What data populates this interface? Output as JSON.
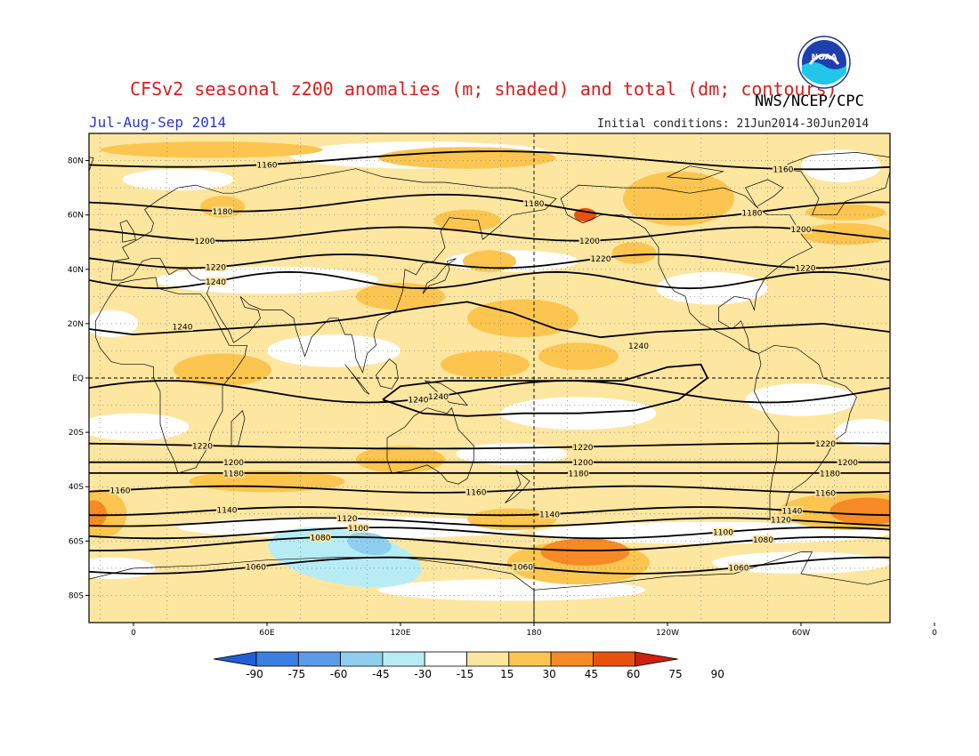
{
  "header": {
    "title": "CFSv2 seasonal z200 anomalies (m; shaded) and total (dm; contours)",
    "agency": "NWS/NCEP/CPC",
    "season": "Jul-Aug-Sep 2014",
    "initial_conditions": "Initial conditions: 21Jun2014-30Jun2014"
  },
  "logo": {
    "text": "NOAA",
    "icon": "noaa-logo"
  },
  "colors": {
    "frame": "#000000",
    "shade_15_30": "#fde6a0",
    "shade_30_45": "#fbc54f",
    "shade_45_60": "#f58a26",
    "shade_60_75": "#e8520f",
    "shade_neg15_neg30": "#b8ecf5",
    "shade_neg30_neg45": "#8ecfef",
    "neutral": "#ffffff"
  },
  "chart_data": {
    "type": "heatmap",
    "projection": "cylindrical equidistant",
    "grid": true,
    "x_ticks": [
      "0",
      "60E",
      "120E",
      "180",
      "120W",
      "60W",
      "0"
    ],
    "y_ticks": [
      "80N",
      "60N",
      "40N",
      "20N",
      "EQ",
      "20S",
      "40S",
      "60S",
      "80S"
    ],
    "colorbar": {
      "levels": [
        "-90",
        "-75",
        "-60",
        "-45",
        "-30",
        "-15",
        "15",
        "30",
        "45",
        "60",
        "75",
        "90"
      ],
      "colors": [
        "#1f5fd6",
        "#3b7fe0",
        "#5a9ae8",
        "#8ecfef",
        "#b8ecf5",
        "#ffffff",
        "#fde6a0",
        "#fbc54f",
        "#f58a26",
        "#e8520f",
        "#cc2010"
      ]
    },
    "contours": [
      {
        "value": "1160",
        "lat": 80,
        "labels": [
          {
            "lon": 60,
            "text": "1160"
          },
          {
            "lon": 292,
            "text": "1160"
          }
        ]
      },
      {
        "value": "1180",
        "lat": 63,
        "labels": [
          {
            "lon": 40,
            "text": "1180"
          },
          {
            "lon": 180,
            "text": "1180"
          },
          {
            "lon": 278,
            "text": "1180"
          }
        ]
      },
      {
        "value": "1200",
        "lat": 53,
        "labels": [
          {
            "lon": 32,
            "text": "1200"
          },
          {
            "lon": 205,
            "text": "1200"
          },
          {
            "lon": 300,
            "text": "1200"
          }
        ]
      },
      {
        "value": "1220",
        "lat": 43,
        "labels": [
          {
            "lon": 37,
            "text": "1220"
          },
          {
            "lon": 210,
            "text": "1220"
          },
          {
            "lon": 302,
            "text": "1220"
          }
        ]
      },
      {
        "value": "1240",
        "lat": 36,
        "labels": [
          {
            "lon": 37,
            "text": "1240"
          }
        ]
      },
      {
        "value": "1240",
        "lat": 17,
        "labels": [
          {
            "lon": 22,
            "text": "1240"
          },
          {
            "lon": 227,
            "text": "1240"
          },
          {
            "lon": 344,
            "text": "1240"
          }
        ]
      },
      {
        "value": "1240",
        "lat": -3,
        "labels": [
          {
            "lon": 137,
            "text": "1240"
          },
          {
            "lon": 128,
            "text": "1240"
          }
        ]
      },
      {
        "value": "1220",
        "lat": -25,
        "labels": [
          {
            "lon": 31,
            "text": "1220"
          },
          {
            "lon": 202,
            "text": "1220"
          },
          {
            "lon": 311,
            "text": "1220"
          }
        ]
      },
      {
        "value": "1200",
        "lat": -31,
        "labels": [
          {
            "lon": 45,
            "text": "1200"
          },
          {
            "lon": 202,
            "text": "1200"
          },
          {
            "lon": 321,
            "text": "1200"
          }
        ]
      },
      {
        "value": "1180",
        "lat": -35,
        "labels": [
          {
            "lon": 45,
            "text": "1180"
          },
          {
            "lon": 200,
            "text": "1180"
          },
          {
            "lon": 313,
            "text": "1180"
          }
        ]
      },
      {
        "value": "1160",
        "lat": -41,
        "labels": [
          {
            "lon": -6,
            "text": "1160"
          },
          {
            "lon": 154,
            "text": "1160"
          },
          {
            "lon": 311,
            "text": "1160"
          }
        ]
      },
      {
        "value": "1140",
        "lat": -49,
        "labels": [
          {
            "lon": 42,
            "text": "1140"
          },
          {
            "lon": 187,
            "text": "1140"
          },
          {
            "lon": 296,
            "text": "1140"
          }
        ]
      },
      {
        "value": "1120",
        "lat": -53,
        "labels": [
          {
            "lon": 96,
            "text": "1120"
          },
          {
            "lon": 291,
            "text": "1120"
          }
        ]
      },
      {
        "value": "1100",
        "lat": -57,
        "labels": [
          {
            "lon": 101,
            "text": "1100"
          },
          {
            "lon": 265,
            "text": "1100"
          }
        ]
      },
      {
        "value": "1080",
        "lat": -61,
        "labels": [
          {
            "lon": 84,
            "text": "1080"
          },
          {
            "lon": 283,
            "text": "1080"
          }
        ]
      },
      {
        "value": "1060",
        "lat": -69,
        "labels": [
          {
            "lon": 55,
            "text": "1060"
          },
          {
            "lon": 175,
            "text": "1060"
          },
          {
            "lon": 272,
            "text": "1060"
          }
        ]
      }
    ],
    "anomaly_regions": [
      {
        "level": "15-30",
        "lon": [
          -20,
          340
        ],
        "lat": [
          -70,
          85
        ]
      },
      {
        "level": "30-45",
        "lon": [
          150,
          215
        ],
        "lat": [
          10,
          30
        ]
      },
      {
        "level": "30-45",
        "lon": [
          210,
          270
        ],
        "lat": [
          55,
          80
        ]
      },
      {
        "level": "60-75",
        "lon": [
          195,
          212
        ],
        "lat": [
          58,
          65
        ]
      },
      {
        "level": "45-60",
        "lon": [
          180,
          225
        ],
        "lat": [
          -70,
          -55
        ]
      },
      {
        "level": "45-60",
        "lon": [
          310,
          345
        ],
        "lat": [
          -55,
          -43
        ]
      },
      {
        "level": "45-60",
        "lon": [
          -20,
          -10
        ],
        "lat": [
          -55,
          -45
        ]
      },
      {
        "level": "neg15-neg30",
        "lon": [
          60,
          130
        ],
        "lat": [
          -78,
          -55
        ]
      }
    ]
  }
}
